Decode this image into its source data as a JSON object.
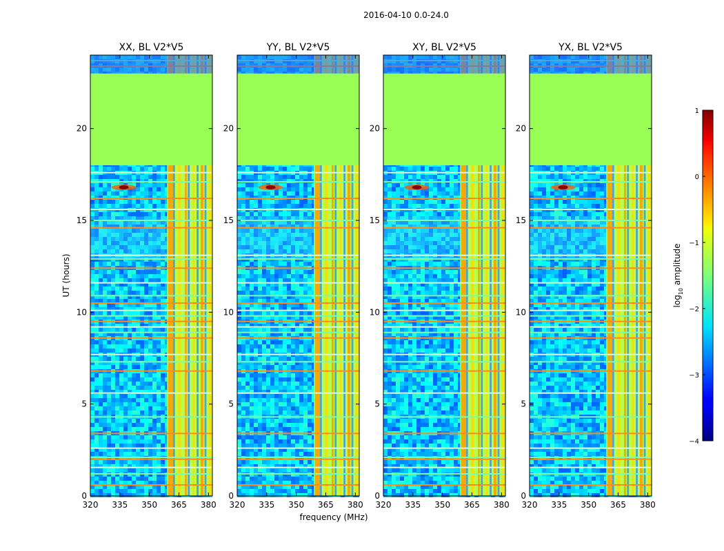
{
  "figure": {
    "suptitle": "2016-04-10 0.0-24.0"
  },
  "chart_data": {
    "type": "heatmap",
    "xlabel": "frequency (MHz)",
    "ylabel": "UT (hours)",
    "xlim": [
      320,
      382
    ],
    "ylim": [
      0,
      24
    ],
    "xticks": [
      "320",
      "335",
      "350",
      "365",
      "380"
    ],
    "yticks": [
      "0",
      "5",
      "10",
      "15",
      "20"
    ],
    "panels": [
      {
        "title": "XX, BL V2*V5",
        "blank_hours": [
          18.0,
          23.0
        ],
        "rfi_band_mhz": [
          359,
          382
        ],
        "flare": {
          "freq": 337,
          "hour": 16.8
        }
      },
      {
        "title": "YY, BL V2*V5",
        "blank_hours": [
          18.0,
          23.0
        ],
        "rfi_band_mhz": [
          359,
          382
        ],
        "flare": {
          "freq": 337,
          "hour": 16.8
        }
      },
      {
        "title": "XY, BL V2*V5",
        "blank_hours": [
          18.0,
          23.0
        ],
        "rfi_band_mhz": [
          359,
          382
        ],
        "flare": {
          "freq": 337,
          "hour": 16.8
        }
      },
      {
        "title": "YX, BL V2*V5",
        "blank_hours": [
          18.0,
          23.0
        ],
        "rfi_band_mhz": [
          359,
          382
        ],
        "flare": {
          "freq": 337,
          "hour": 16.8
        }
      }
    ],
    "colorbar": {
      "label_prefix": "log",
      "label_sub": "10",
      "label_suffix": " amplitude",
      "range": [
        -4,
        1
      ],
      "ticks": [
        "1",
        "0",
        "−1",
        "−2",
        "−3",
        "−4"
      ],
      "colormap": "jet"
    }
  }
}
